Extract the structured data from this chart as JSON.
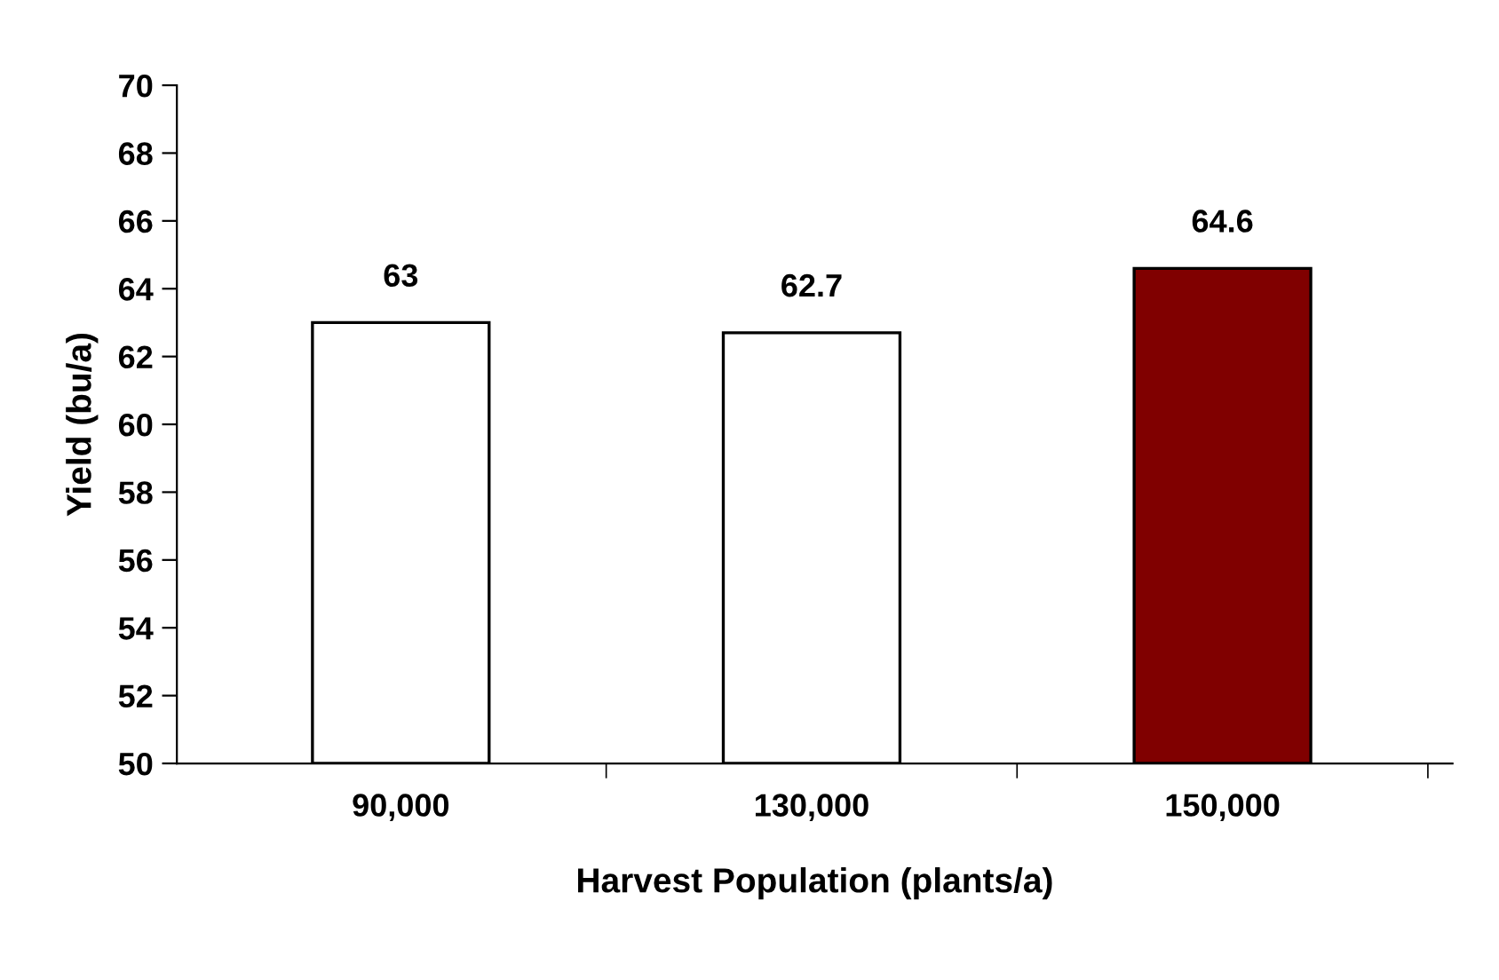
{
  "chart_data": {
    "type": "bar",
    "categories": [
      "90,000",
      "130,000",
      "150,000"
    ],
    "values": [
      63,
      62.7,
      64.6
    ],
    "colors": [
      "#ffffff",
      "#ffffff",
      "#800000"
    ],
    "xlabel": "Harvest Population (plants/a)",
    "ylabel": "Yield (bu/a)",
    "ylim": [
      50,
      70
    ],
    "yticks": [
      50,
      52,
      54,
      56,
      58,
      60,
      62,
      64,
      66,
      68,
      70
    ],
    "data_labels": true,
    "grid": false
  }
}
